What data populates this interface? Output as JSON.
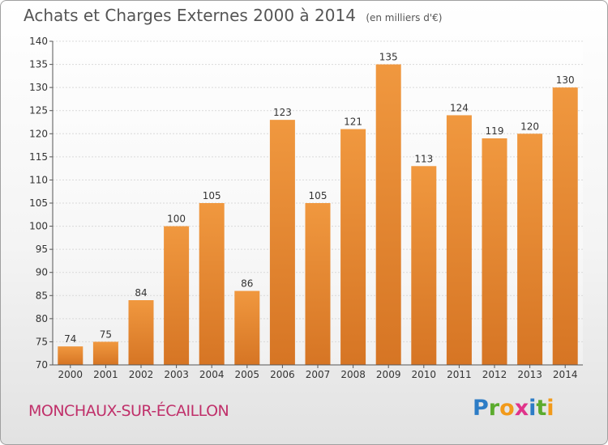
{
  "chart_data": {
    "type": "bar",
    "title": "Achats et Charges Externes 2000 à 2014",
    "subtitle": "(en milliers d'€)",
    "categories": [
      "2000",
      "2001",
      "2002",
      "2003",
      "2004",
      "2005",
      "2006",
      "2007",
      "2008",
      "2009",
      "2010",
      "2011",
      "2012",
      "2013",
      "2014"
    ],
    "values": [
      74,
      75,
      84,
      100,
      105,
      86,
      123,
      105,
      121,
      135,
      113,
      124,
      119,
      120,
      130
    ],
    "ylim": [
      70,
      140
    ],
    "yticks": [
      70,
      75,
      80,
      85,
      90,
      95,
      100,
      105,
      110,
      115,
      120,
      125,
      130,
      135,
      140
    ],
    "grid": true,
    "bar_color": "#f0983f",
    "bar_color_dark": "#d67524"
  },
  "footer": {
    "location": "MONCHAUX-SUR-ÉCAILLON",
    "logo_letters": [
      {
        "ch": "P",
        "color": "#2d7cc6"
      },
      {
        "ch": "r",
        "color": "#5bab2e"
      },
      {
        "ch": "o",
        "color": "#f29a1a"
      },
      {
        "ch": "x",
        "color": "#e0338a"
      },
      {
        "ch": "i",
        "color": "#2d7cc6"
      },
      {
        "ch": "t",
        "color": "#5bab2e"
      },
      {
        "ch": "i",
        "color": "#f29a1a"
      }
    ]
  }
}
